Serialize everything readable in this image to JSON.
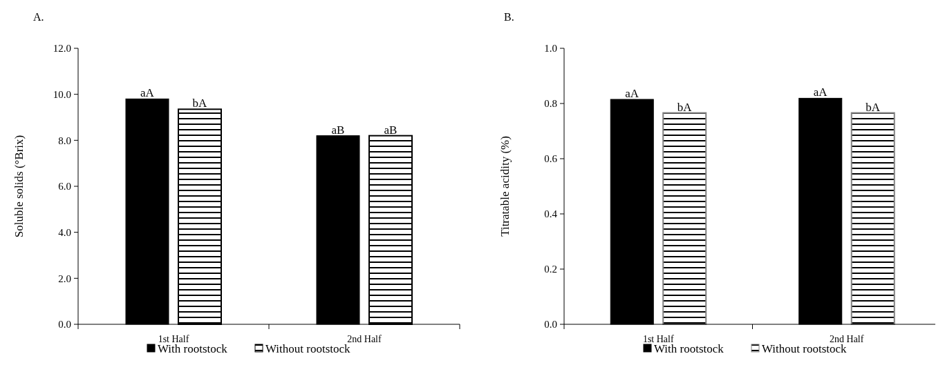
{
  "chart_data": [
    {
      "type": "bar",
      "title": "A.",
      "ylabel": "Soluble solids (°Brix)",
      "categories": [
        "1st Half",
        "2nd Half"
      ],
      "series": [
        {
          "name": "With rootstock",
          "color": "#000000",
          "values": [
            9.8,
            8.2
          ]
        },
        {
          "name": "Without rootstock",
          "color": "#000000",
          "values": [
            9.35,
            8.2
          ]
        }
      ],
      "ylim": [
        0,
        12
      ],
      "yticks": [
        {
          "value": 0,
          "label": "0.0"
        },
        {
          "value": 2,
          "label": "2.0"
        },
        {
          "value": 4,
          "label": "4.0"
        },
        {
          "value": 6,
          "label": "6.0"
        },
        {
          "value": 8,
          "label": "8.0"
        },
        {
          "value": 10,
          "label": "10.0"
        },
        {
          "value": 12,
          "label": "12.0"
        }
      ],
      "annotations": [
        "aA",
        "bA",
        "aB",
        "aB"
      ],
      "legend": "bottom",
      "grid": false
    },
    {
      "type": "bar",
      "title": "B.",
      "ylabel": "Titratable acidity (%)",
      "categories": [
        "1st Half",
        "2nd Half"
      ],
      "series": [
        {
          "name": "With rootstock",
          "color": "#000000",
          "values": [
            0.815,
            0.819
          ]
        },
        {
          "name": "Without rootstock",
          "color": "#808080",
          "values": [
            0.766,
            0.766
          ]
        }
      ],
      "ylim": [
        0,
        1
      ],
      "yticks": [
        {
          "value": 0,
          "label": "0.0"
        },
        {
          "value": 0.2,
          "label": "0.2"
        },
        {
          "value": 0.4,
          "label": "0.4"
        },
        {
          "value": 0.6,
          "label": "0.6"
        },
        {
          "value": 0.8,
          "label": "0.8"
        },
        {
          "value": 1,
          "label": "1.0"
        }
      ],
      "annotations": [
        "aA",
        "bA",
        "aA",
        "bA"
      ],
      "legend": "bottom",
      "grid": false
    }
  ]
}
